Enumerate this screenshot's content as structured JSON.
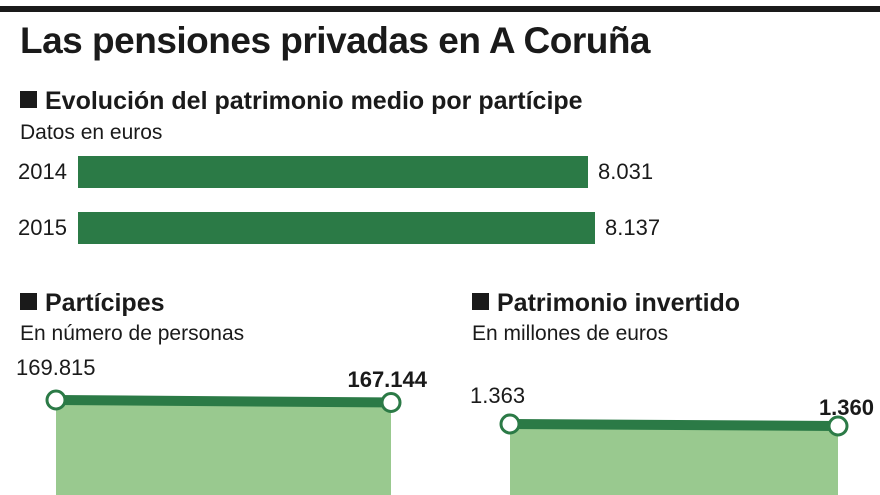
{
  "title": "Las pensiones privadas en A Coruña",
  "colors": {
    "bar": "#2b7a46",
    "line": "#2b7a46",
    "area": "#99c98f",
    "text": "#1a1a1a"
  },
  "chart_data": [
    {
      "type": "bar",
      "title": "Evolución del patrimonio medio por partícipe",
      "subtitle": "Datos en euros",
      "categories": [
        "2014",
        "2015"
      ],
      "values": [
        8031,
        8137
      ],
      "value_labels": [
        "8.031",
        "8.137"
      ]
    },
    {
      "type": "area",
      "title": "Partícipes",
      "subtitle": "En número de personas",
      "values": [
        169815,
        167144
      ],
      "value_labels": [
        "169.815",
        "167.144"
      ]
    },
    {
      "type": "area",
      "title": "Patrimonio invertido",
      "subtitle": "En millones de euros",
      "values": [
        1363,
        1360
      ],
      "value_labels": [
        "1.363",
        "1.360"
      ]
    }
  ]
}
